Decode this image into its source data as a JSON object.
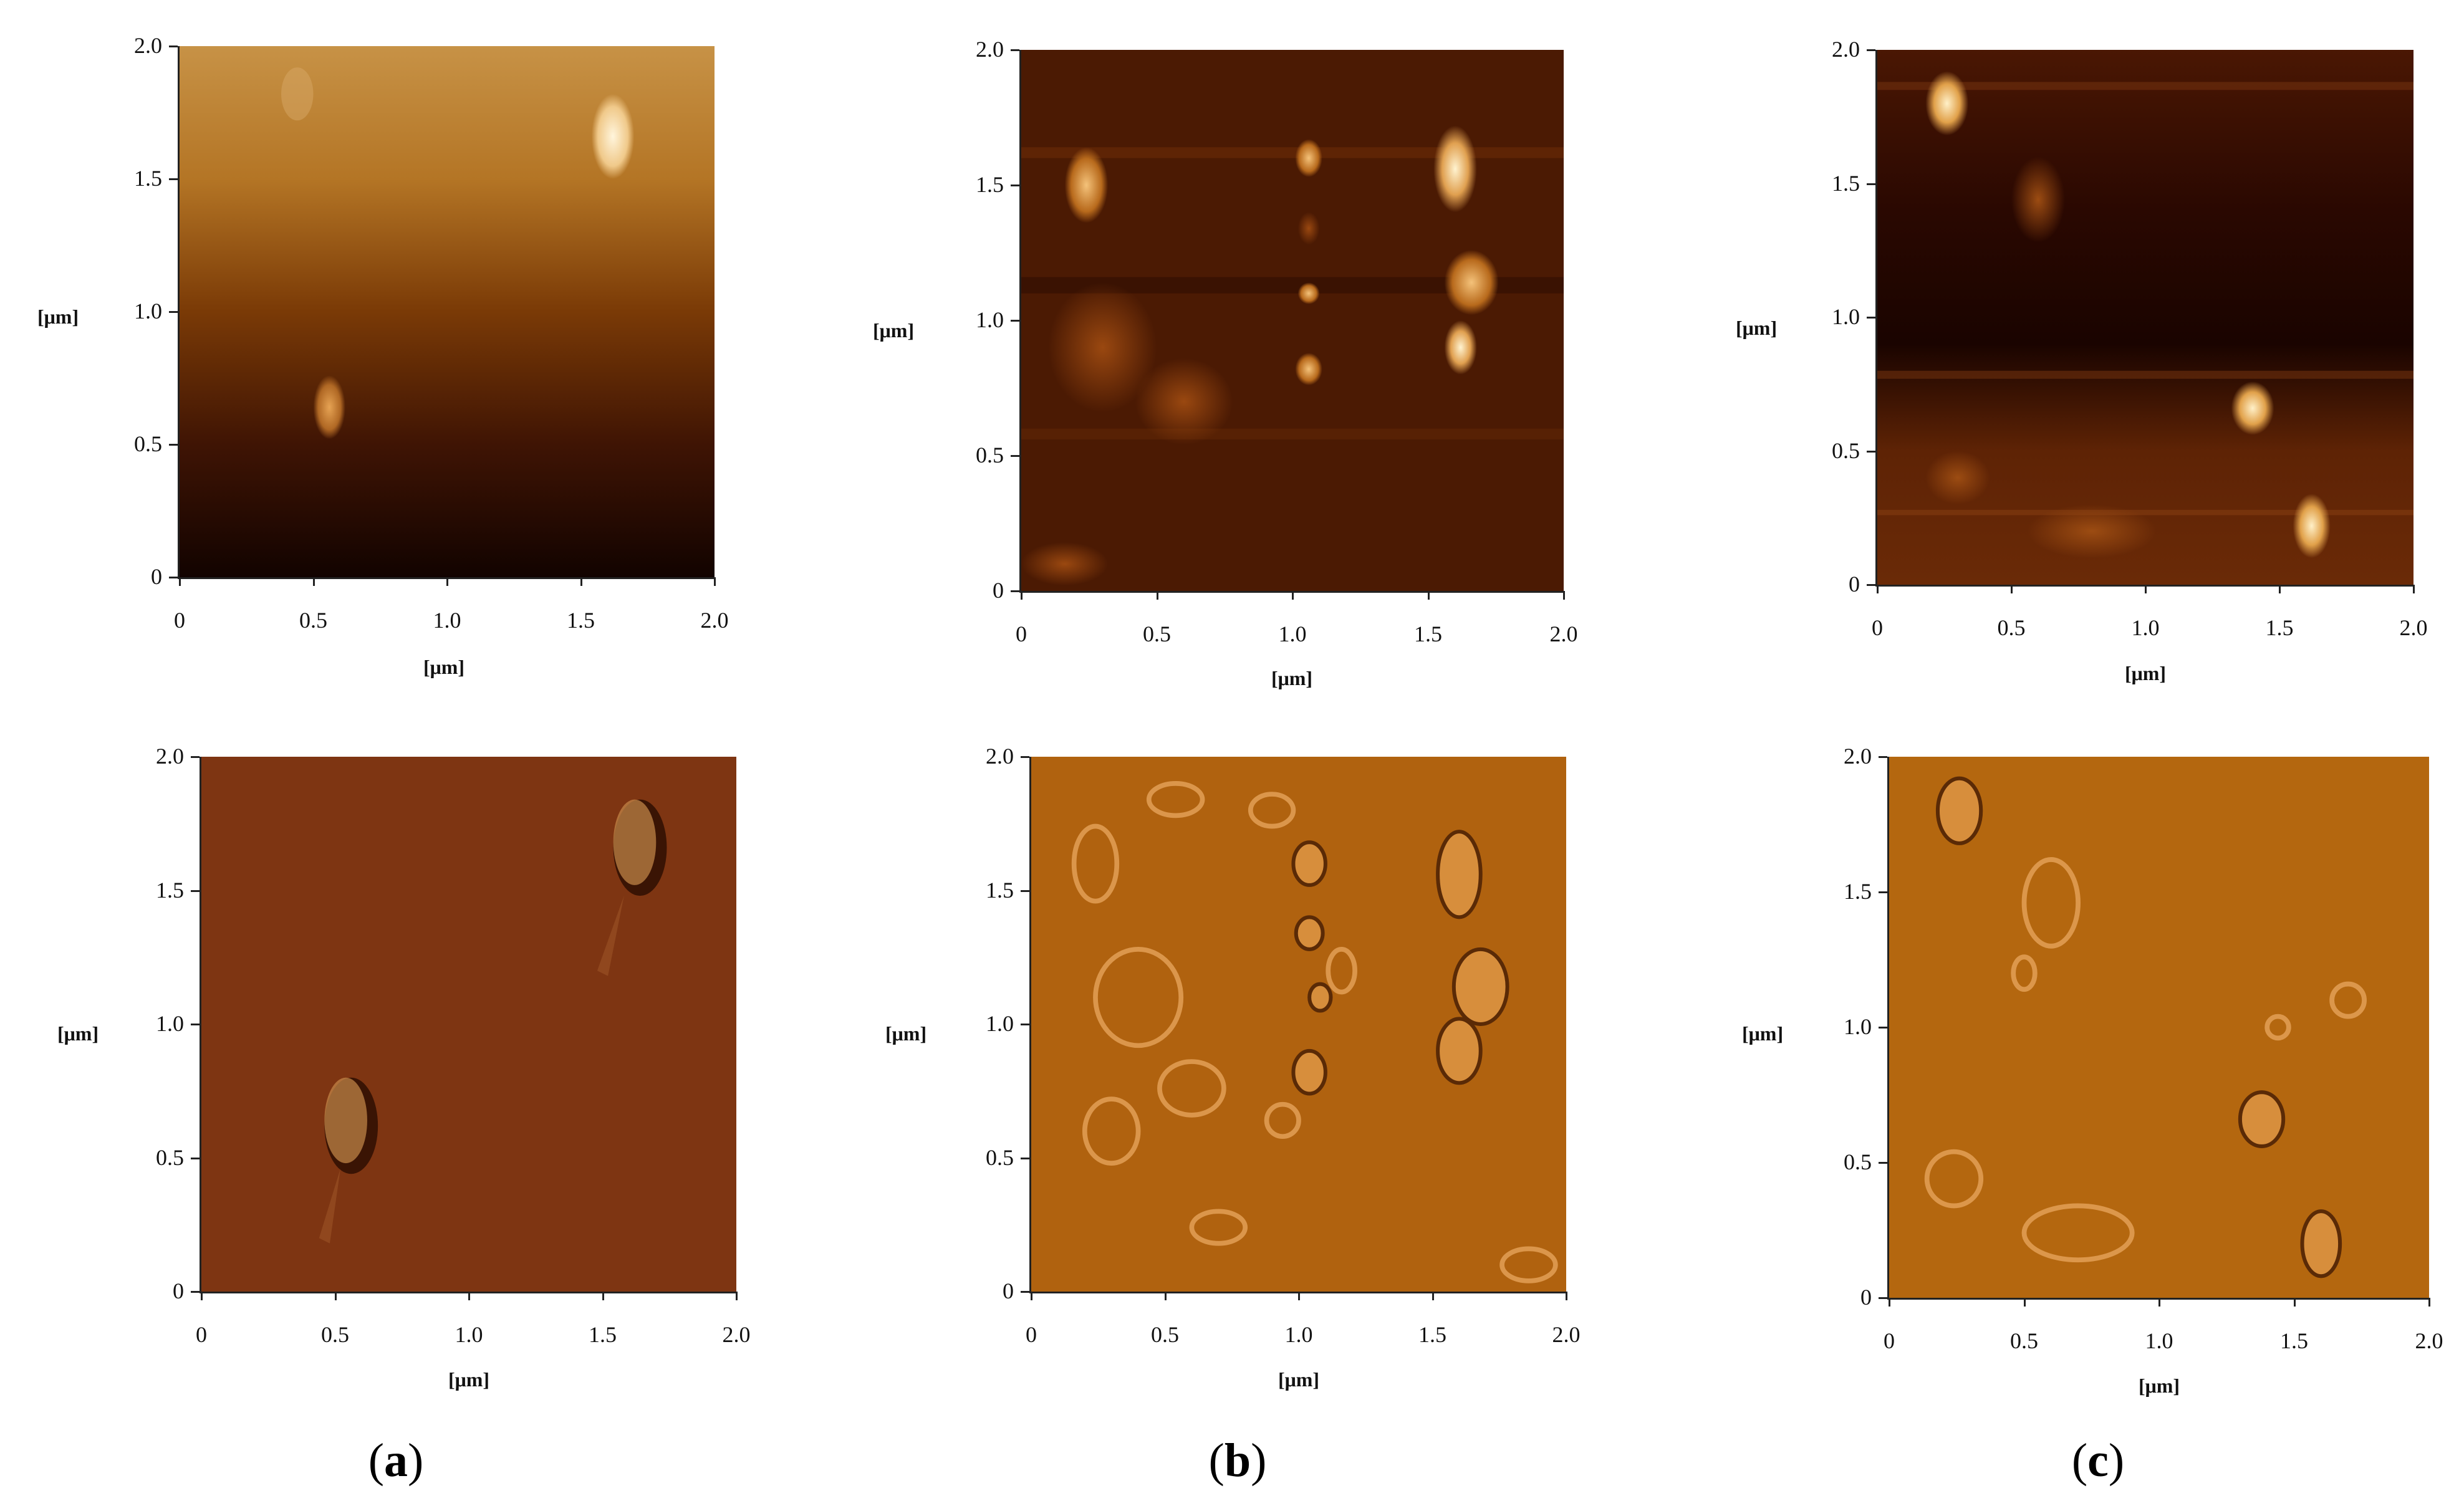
{
  "figure": {
    "panels": [
      {
        "id": "a-top",
        "mode": "height"
      },
      {
        "id": "b-top",
        "mode": "height"
      },
      {
        "id": "c-top",
        "mode": "height"
      },
      {
        "id": "a-bottom",
        "mode": "amplitude"
      },
      {
        "id": "b-bottom",
        "mode": "amplitude"
      },
      {
        "id": "c-bottom",
        "mode": "amplitude"
      }
    ],
    "axis": {
      "x_ticks": [
        "0",
        "0.5",
        "1.0",
        "1.5",
        "2.0"
      ],
      "y_ticks": [
        "0",
        "0.5",
        "1.0",
        "1.5",
        "2.0"
      ],
      "x_label": "[μm]",
      "y_label": "[μm]"
    },
    "captions": [
      {
        "open": "(",
        "letter": "a",
        "close": ")"
      },
      {
        "open": "(",
        "letter": "b",
        "close": ")"
      },
      {
        "open": "(",
        "letter": "c",
        "close": ")"
      }
    ],
    "colors": {
      "height_dark": "#1a0500",
      "height_mid": "#7a2a00",
      "height_light": "#fff3d0",
      "amplitude_a": "#7e3512",
      "amplitude_bc": "#b0620f"
    }
  }
}
